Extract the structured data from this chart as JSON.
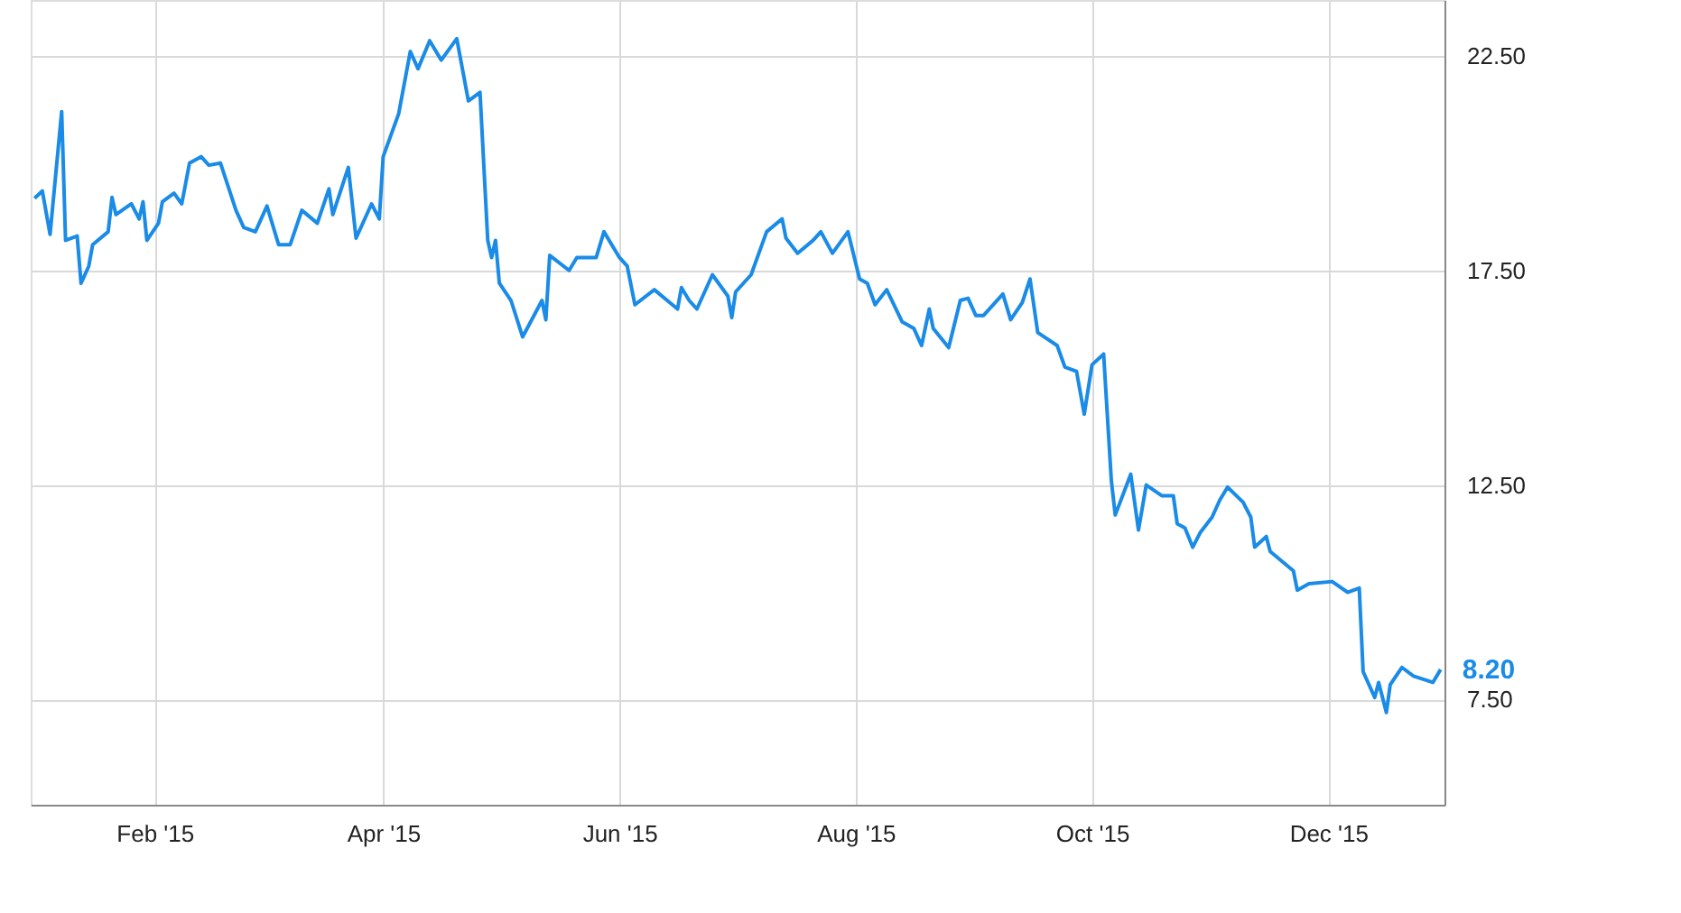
{
  "chart_data": {
    "type": "line",
    "x": [
      "2015-01-01",
      "2015-01-03",
      "2015-01-05",
      "2015-01-08",
      "2015-01-09",
      "2015-01-12",
      "2015-01-13",
      "2015-01-15",
      "2015-01-16",
      "2015-01-20",
      "2015-01-21",
      "2015-01-22",
      "2015-01-26",
      "2015-01-28",
      "2015-01-29",
      "2015-01-30",
      "2015-02-02",
      "2015-02-03",
      "2015-02-06",
      "2015-02-08",
      "2015-02-10",
      "2015-02-13",
      "2015-02-15",
      "2015-02-18",
      "2015-02-22",
      "2015-02-24",
      "2015-02-27",
      "2015-03-02",
      "2015-03-05",
      "2015-03-08",
      "2015-03-11",
      "2015-03-15",
      "2015-03-18",
      "2015-03-19",
      "2015-03-23",
      "2015-03-25",
      "2015-03-29",
      "2015-03-31",
      "2015-04-01",
      "2015-04-05",
      "2015-04-08",
      "2015-04-10",
      "2015-04-13",
      "2015-04-16",
      "2015-04-20",
      "2015-04-23",
      "2015-04-26",
      "2015-04-28",
      "2015-04-29",
      "2015-04-30",
      "2015-05-01",
      "2015-05-04",
      "2015-05-07",
      "2015-05-12",
      "2015-05-13",
      "2015-05-14",
      "2015-05-19",
      "2015-05-21",
      "2015-05-26",
      "2015-05-28",
      "2015-06-01",
      "2015-06-03",
      "2015-06-05",
      "2015-06-10",
      "2015-06-16",
      "2015-06-17",
      "2015-06-19",
      "2015-06-21",
      "2015-06-25",
      "2015-06-29",
      "2015-06-30",
      "2015-07-01",
      "2015-07-05",
      "2015-07-07",
      "2015-07-09",
      "2015-07-13",
      "2015-07-14",
      "2015-07-17",
      "2015-07-21",
      "2015-07-23",
      "2015-07-26",
      "2015-07-30",
      "2015-08-02",
      "2015-08-04",
      "2015-08-06",
      "2015-08-09",
      "2015-08-13",
      "2015-08-16",
      "2015-08-18",
      "2015-08-20",
      "2015-08-21",
      "2015-08-25",
      "2015-08-28",
      "2015-08-30",
      "2015-09-01",
      "2015-09-03",
      "2015-09-08",
      "2015-09-10",
      "2015-09-13",
      "2015-09-15",
      "2015-09-17",
      "2015-09-22",
      "2015-09-24",
      "2015-09-27",
      "2015-09-29",
      "2015-10-01",
      "2015-10-04",
      "2015-10-06",
      "2015-10-07",
      "2015-10-11",
      "2015-10-13",
      "2015-10-15",
      "2015-10-19",
      "2015-10-22",
      "2015-10-23",
      "2015-10-25",
      "2015-10-27",
      "2015-10-29",
      "2015-11-01",
      "2015-11-03",
      "2015-11-05",
      "2015-11-09",
      "2015-11-11",
      "2015-11-12",
      "2015-11-15",
      "2015-11-16",
      "2015-11-22",
      "2015-11-23",
      "2015-11-26",
      "2015-12-02",
      "2015-12-06",
      "2015-12-09",
      "2015-12-10",
      "2015-12-13",
      "2015-12-14",
      "2015-12-16",
      "2015-12-17",
      "2015-12-20",
      "2015-12-23",
      "2015-12-28",
      "2015-12-30"
    ],
    "series": [
      {
        "color": "#1a8be6",
        "values": [
          19.18,
          19.35,
          18.34,
          21.2,
          18.2,
          18.3,
          17.2,
          17.6,
          18.1,
          18.4,
          19.2,
          18.8,
          19.05,
          18.7,
          19.1,
          18.2,
          18.6,
          19.1,
          19.3,
          19.05,
          20.0,
          20.15,
          19.95,
          20.0,
          18.9,
          18.5,
          18.4,
          19.0,
          18.1,
          18.1,
          18.9,
          18.6,
          19.4,
          18.8,
          19.9,
          18.25,
          19.05,
          18.7,
          20.15,
          21.15,
          22.6,
          22.2,
          22.85,
          22.4,
          22.9,
          21.45,
          21.65,
          18.2,
          17.8,
          18.2,
          17.2,
          16.8,
          15.95,
          16.8,
          16.35,
          17.85,
          17.5,
          17.8,
          17.8,
          18.4,
          17.8,
          17.6,
          16.7,
          17.05,
          16.6,
          17.1,
          16.8,
          16.6,
          17.4,
          16.9,
          16.4,
          17.0,
          17.4,
          17.9,
          18.4,
          18.7,
          18.25,
          17.9,
          18.2,
          18.4,
          17.9,
          18.4,
          17.3,
          17.2,
          16.7,
          17.05,
          16.3,
          16.15,
          15.75,
          16.6,
          16.15,
          15.7,
          16.8,
          16.85,
          16.45,
          16.45,
          16.95,
          16.35,
          16.75,
          17.3,
          16.05,
          15.75,
          15.25,
          15.15,
          14.15,
          15.3,
          15.55,
          12.6,
          11.8,
          12.75,
          11.45,
          12.5,
          12.25,
          12.25,
          11.6,
          11.5,
          11.05,
          11.4,
          11.75,
          12.15,
          12.45,
          12.1,
          11.75,
          11.05,
          11.3,
          10.95,
          10.5,
          10.05,
          10.2,
          10.25,
          10.0,
          10.1,
          8.15,
          7.55,
          7.9,
          7.2,
          7.85,
          8.25,
          8.05,
          7.9,
          8.2
        ]
      }
    ],
    "xlim": [
      "2014-12-31",
      "2015-12-31"
    ],
    "xticks": [
      {
        "value": "2015-02-01",
        "label": "Feb '15"
      },
      {
        "value": "2015-04-01",
        "label": "Apr '15"
      },
      {
        "value": "2015-06-01",
        "label": "Jun '15"
      },
      {
        "value": "2015-08-01",
        "label": "Aug '15"
      },
      {
        "value": "2015-10-01",
        "label": "Oct '15"
      },
      {
        "value": "2015-12-01",
        "label": "Dec '15"
      }
    ],
    "ylim": [
      5.05,
      23.8
    ],
    "yticks": [
      {
        "value": 7.5,
        "label": "7.50"
      },
      {
        "value": 12.5,
        "label": "12.50"
      },
      {
        "value": 17.5,
        "label": "17.50"
      },
      {
        "value": 22.5,
        "label": "22.50"
      }
    ],
    "grid": true,
    "annotations": [
      {
        "text": "8.20",
        "x": "2015-12-30",
        "y": 8.2
      }
    ]
  }
}
